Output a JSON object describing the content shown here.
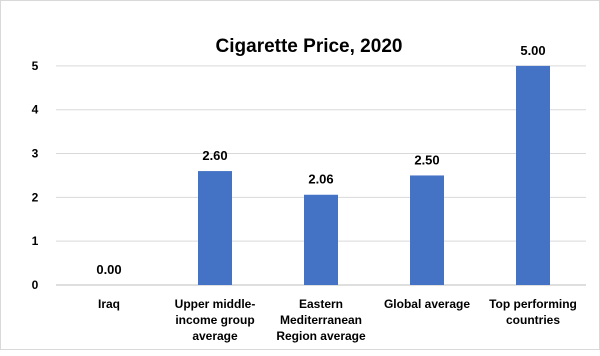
{
  "chart_data": {
    "type": "bar",
    "title": "Cigarette Price, 2020",
    "categories": [
      [
        "Iraq"
      ],
      [
        "Upper middle-",
        "income group",
        "average"
      ],
      [
        "Eastern",
        "Mediterranean",
        "Region average"
      ],
      [
        "Global average"
      ],
      [
        "Top performing",
        "countries"
      ]
    ],
    "values": [
      0.0,
      2.6,
      2.06,
      2.5,
      5.0
    ],
    "value_labels": [
      "0.00",
      "2.60",
      "2.06",
      "2.50",
      "5.00"
    ],
    "yticks": [
      "0",
      "1",
      "2",
      "3",
      "4",
      "5"
    ],
    "ylim": [
      0,
      5.5
    ],
    "grid": true,
    "bar_color": "#4472c4",
    "xlabel": "",
    "ylabel": ""
  }
}
